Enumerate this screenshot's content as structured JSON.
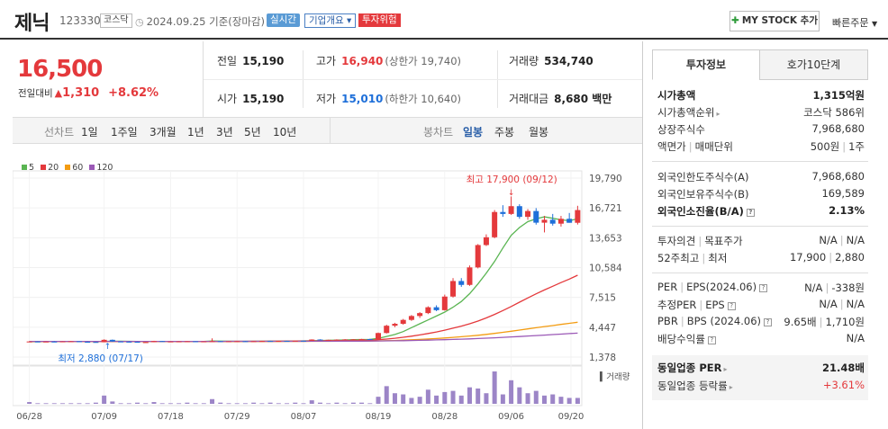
{
  "header": {
    "stock_name": "제닉",
    "stock_code": "123330",
    "market": "코스닥",
    "basis": "2024.09.25 기준(장마감)",
    "realtime_badge": "실시간",
    "overview_button": "기업개요",
    "overview_arrow": "▾",
    "risk_badge": "투자위험",
    "mystock_button": "MY STOCK 추가",
    "quick_order": "빠른주문"
  },
  "price": {
    "current": "16,500",
    "change_label": "전일대비",
    "change_amount": "1,310",
    "change_pct": "+8.62%"
  },
  "summary": {
    "prev_close_label": "전일",
    "prev_close": "15,190",
    "high_label": "고가",
    "high": "16,940",
    "upper_limit": "(상한가 19,740)",
    "volume_label": "거래량",
    "volume": "534,740",
    "open_label": "시가",
    "open": "15,190",
    "low_label": "저가",
    "low": "15,010",
    "lower_limit": "(하한가 10,640)",
    "amount_label": "거래대금",
    "amount": "8,680 백만"
  },
  "period_bar": {
    "line_chart_label": "선차트",
    "periods": [
      "1일",
      "1주일",
      "3개월",
      "1년",
      "3년",
      "5년",
      "10년"
    ],
    "candle_label": "봉차트",
    "candles": [
      "일봉",
      "주봉",
      "월봉"
    ],
    "selected_candle": "일봉"
  },
  "chart_data": {
    "type": "candlestick",
    "ma_legend": [
      {
        "name": "5",
        "color": "#5ab552"
      },
      {
        "name": "20",
        "color": "#e4393c"
      },
      {
        "name": "60",
        "color": "#f39c12"
      },
      {
        "name": "120",
        "color": "#9b59b6"
      }
    ],
    "y_ticks": [
      "19,790",
      "16,721",
      "13,653",
      "10,584",
      "7,515",
      "4,447",
      "1,378"
    ],
    "ylim": [
      1378,
      19790
    ],
    "x_ticks": [
      "06/28",
      "07/09",
      "07/18",
      "07/29",
      "08/07",
      "08/19",
      "08/28",
      "09/06",
      "09/20"
    ],
    "annotations": {
      "high": "최고 17,900 (09/12)",
      "low": "최저 2,880 (07/17)"
    },
    "volume_label": "거래량",
    "up_color": "#e4393c",
    "down_color": "#1e6fd9",
    "candles": [
      [
        2950,
        3010,
        2900,
        2980
      ],
      [
        2980,
        3000,
        2920,
        2940
      ],
      [
        2940,
        2990,
        2900,
        2970
      ],
      [
        2970,
        3020,
        2930,
        2960
      ],
      [
        2960,
        3000,
        2920,
        2990
      ],
      [
        2990,
        3030,
        2950,
        3000
      ],
      [
        3000,
        3010,
        2930,
        2950
      ],
      [
        2950,
        2990,
        2900,
        2930
      ],
      [
        2930,
        2960,
        2880,
        2900
      ],
      [
        2900,
        3200,
        2900,
        3150
      ],
      [
        3150,
        3180,
        2950,
        2980
      ],
      [
        2980,
        3010,
        2930,
        2960
      ],
      [
        2960,
        3000,
        2920,
        2950
      ],
      [
        2950,
        2970,
        2880,
        2900
      ],
      [
        2900,
        2930,
        2880,
        2910
      ],
      [
        2910,
        3050,
        2900,
        3020
      ],
      [
        3020,
        3040,
        2950,
        2970
      ],
      [
        2970,
        3000,
        2930,
        2980
      ],
      [
        2980,
        3010,
        2950,
        2990
      ],
      [
        2990,
        3030,
        2960,
        3000
      ],
      [
        3000,
        3020,
        2960,
        2970
      ],
      [
        2970,
        3000,
        2940,
        2990
      ],
      [
        2990,
        3300,
        2980,
        3010
      ],
      [
        3010,
        3040,
        2960,
        2980
      ],
      [
        2980,
        3010,
        2950,
        3000
      ],
      [
        3000,
        3030,
        2970,
        3010
      ],
      [
        3010,
        3040,
        2980,
        2990
      ],
      [
        2990,
        3020,
        2960,
        3010
      ],
      [
        3010,
        3050,
        2990,
        3030
      ],
      [
        3030,
        3060,
        3000,
        3020
      ],
      [
        3020,
        3050,
        2990,
        3040
      ],
      [
        3040,
        3060,
        3000,
        3030
      ],
      [
        3030,
        3070,
        3010,
        3060
      ],
      [
        3060,
        3090,
        3020,
        3050
      ],
      [
        3050,
        3200,
        3040,
        3180
      ],
      [
        3180,
        3210,
        3100,
        3130
      ],
      [
        3130,
        3160,
        3080,
        3150
      ],
      [
        3150,
        3200,
        3120,
        3170
      ],
      [
        3170,
        3220,
        3140,
        3190
      ],
      [
        3190,
        3230,
        3150,
        3200
      ],
      [
        3200,
        3250,
        3170,
        3230
      ],
      [
        3230,
        3260,
        3190,
        3210
      ],
      [
        3210,
        3900,
        3200,
        3850
      ],
      [
        3850,
        4700,
        3800,
        4600
      ],
      [
        4600,
        4900,
        4450,
        4800
      ],
      [
        4800,
        5300,
        4700,
        5200
      ],
      [
        5200,
        5700,
        5100,
        5600
      ],
      [
        5600,
        6000,
        5400,
        5900
      ],
      [
        5900,
        6600,
        5800,
        6500
      ],
      [
        6500,
        6700,
        6100,
        6200
      ],
      [
        6200,
        7800,
        6150,
        7600
      ],
      [
        7600,
        9500,
        7500,
        9200
      ],
      [
        9200,
        9500,
        8600,
        8800
      ],
      [
        8800,
        10800,
        8700,
        10600
      ],
      [
        10600,
        13000,
        10500,
        12900
      ],
      [
        12900,
        14000,
        12800,
        13700
      ],
      [
        13700,
        16500,
        13600,
        16300
      ],
      [
        16300,
        17000,
        15800,
        16100
      ],
      [
        16100,
        17900,
        16000,
        16900
      ],
      [
        16900,
        17100,
        15600,
        15800
      ],
      [
        15800,
        16600,
        15500,
        16400
      ],
      [
        16400,
        16700,
        15000,
        15200
      ],
      [
        15200,
        15900,
        14200,
        15500
      ],
      [
        15500,
        16100,
        14900,
        15100
      ],
      [
        15100,
        15900,
        14800,
        15600
      ],
      [
        15600,
        16200,
        15200,
        15190
      ],
      [
        15190,
        16940,
        15010,
        16500
      ]
    ],
    "volumes": [
      3,
      1,
      1,
      1,
      1,
      1,
      1,
      1,
      2,
      14,
      4,
      1,
      1,
      2,
      1,
      3,
      1,
      1,
      1,
      2,
      1,
      1,
      8,
      2,
      1,
      1,
      1,
      2,
      1,
      2,
      1,
      1,
      2,
      1,
      6,
      2,
      1,
      2,
      1,
      2,
      2,
      1,
      12,
      30,
      18,
      16,
      10,
      12,
      24,
      14,
      20,
      22,
      14,
      28,
      26,
      18,
      55,
      16,
      40,
      28,
      18,
      22,
      14,
      16,
      12,
      10,
      10
    ],
    "ma5": [
      2950,
      2955,
      2960,
      2962,
      2965,
      2968,
      2966,
      2962,
      2958,
      3000,
      3010,
      3005,
      2999,
      2990,
      2980,
      2965,
      2960,
      2964,
      2972,
      2990,
      2985,
      2980,
      3030,
      3020,
      3010,
      3000,
      2998,
      3002,
      3008,
      3014,
      3020,
      3025,
      3030,
      3040,
      3060,
      3080,
      3100,
      3120,
      3140,
      3160,
      3180,
      3190,
      3300,
      3500,
      3700,
      4000,
      4400,
      4800,
      5200,
      5600,
      6000,
      6500,
      7100,
      7900,
      8900,
      10000,
      11200,
      12600,
      13900,
      14700,
      15300,
      15600,
      15800,
      15650,
      15500,
      15400,
      15600
    ],
    "ma20": [
      2960,
      2960,
      2960,
      2961,
      2962,
      2962,
      2962,
      2961,
      2960,
      2968,
      2970,
      2970,
      2971,
      2970,
      2969,
      2968,
      2968,
      2969,
      2970,
      2975,
      2976,
      2977,
      2985,
      2988,
      2990,
      2993,
      2995,
      2998,
      3000,
      3005,
      3010,
      3015,
      3020,
      3028,
      3038,
      3048,
      3058,
      3068,
      3080,
      3092,
      3105,
      3118,
      3160,
      3230,
      3310,
      3410,
      3520,
      3650,
      3800,
      3960,
      4140,
      4350,
      4560,
      4800,
      5080,
      5400,
      5760,
      6160,
      6580,
      7020,
      7460,
      7880,
      8280,
      8660,
      9040,
      9400,
      9800
    ],
    "ma60": [
      2960,
      2960,
      2960,
      2960,
      2961,
      2961,
      2961,
      2961,
      2961,
      2963,
      2964,
      2964,
      2965,
      2965,
      2965,
      2965,
      2966,
      2966,
      2967,
      2968,
      2968,
      2969,
      2971,
      2972,
      2973,
      2974,
      2975,
      2976,
      2978,
      2980,
      2982,
      2984,
      2986,
      2989,
      2993,
      2997,
      3001,
      3006,
      3011,
      3016,
      3022,
      3028,
      3040,
      3060,
      3085,
      3115,
      3150,
      3190,
      3235,
      3285,
      3340,
      3400,
      3465,
      3540,
      3620,
      3710,
      3810,
      3920,
      4030,
      4150,
      4270,
      4390,
      4510,
      4620,
      4740,
      4850,
      4960
    ],
    "ma120": [
      2990,
      2990,
      2990,
      2990,
      2990,
      2990,
      2990,
      2990,
      2990,
      2990,
      2990,
      2990,
      2990,
      2990,
      2990,
      2990,
      2990,
      2990,
      2991,
      2991,
      2991,
      2991,
      2992,
      2992,
      2993,
      2993,
      2994,
      2994,
      2995,
      2996,
      2997,
      2998,
      2999,
      3001,
      3003,
      3005,
      3007,
      3010,
      3013,
      3016,
      3020,
      3024,
      3030,
      3040,
      3052,
      3066,
      3082,
      3100,
      3120,
      3142,
      3166,
      3192,
      3220,
      3250,
      3284,
      3320,
      3360,
      3402,
      3446,
      3492,
      3540,
      3590,
      3640,
      3690,
      3740,
      3790,
      3840
    ]
  },
  "info_panel": {
    "tabs": [
      "투자정보",
      "호가10단계"
    ],
    "market_cap_label": "시가총액",
    "market_cap": "1,315억원",
    "cap_rank_label": "시가총액순위",
    "cap_rank": "코스닥 586위",
    "shares_label": "상장주식수",
    "shares": "7,968,680",
    "par_label": "액면가",
    "lot_label": "매매단위",
    "par": "500원",
    "lot": "1주",
    "foreign_limit_label": "외국인한도주식수(A)",
    "foreign_limit": "7,968,680",
    "foreign_hold_label": "외국인보유주식수(B)",
    "foreign_hold": "169,589",
    "foreign_rate_label": "외국인소진율(B/A)",
    "foreign_rate": "2.13%",
    "opinion_label": "투자의견",
    "target_label": "목표주가",
    "opinion": "N/A",
    "target": "N/A",
    "w52_high_label": "52주최고",
    "w52_low_label": "최저",
    "w52_high": "17,900",
    "w52_low": "2,880",
    "per_label": "PER",
    "eps_label": "EPS(2024.06)",
    "per": "N/A",
    "eps": "-338원",
    "est_per_label": "추정PER",
    "est_eps_label": "EPS",
    "est_per": "N/A",
    "est_eps": "N/A",
    "pbr_label": "PBR",
    "bps_label": "BPS (2024.06)",
    "pbr": "9.65배",
    "bps": "1,710원",
    "div_label": "배당수익률",
    "div": "N/A",
    "peer_per_label": "동일업종 PER",
    "peer_per": "21.48배",
    "peer_rate_label": "동일업종 등락률",
    "peer_rate": "+3.61%"
  }
}
